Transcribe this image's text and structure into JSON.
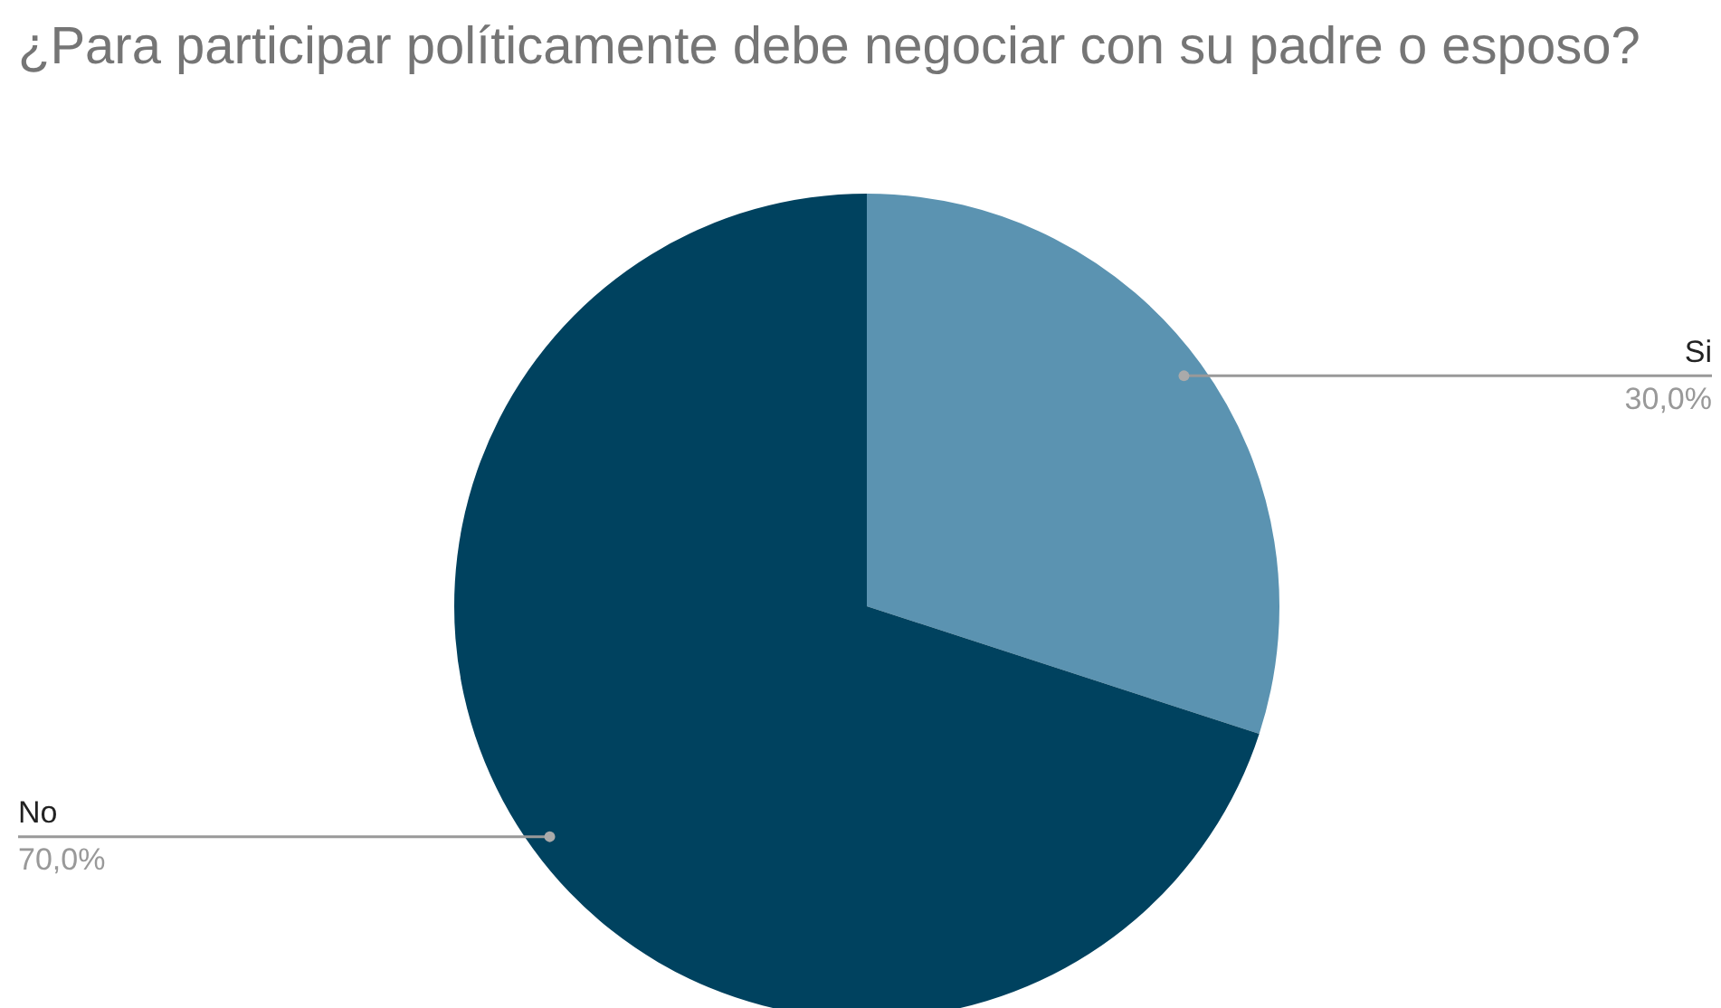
{
  "chart_data": {
    "type": "pie",
    "title": "¿Para participar políticamente debe negociar con su padre o esposo?",
    "categories": [
      "Si",
      "No"
    ],
    "values": [
      30,
      70
    ],
    "value_labels": [
      "30,0%",
      "70,0%"
    ],
    "colors": [
      "#5b93b1",
      "#00425f"
    ],
    "legend": false
  }
}
